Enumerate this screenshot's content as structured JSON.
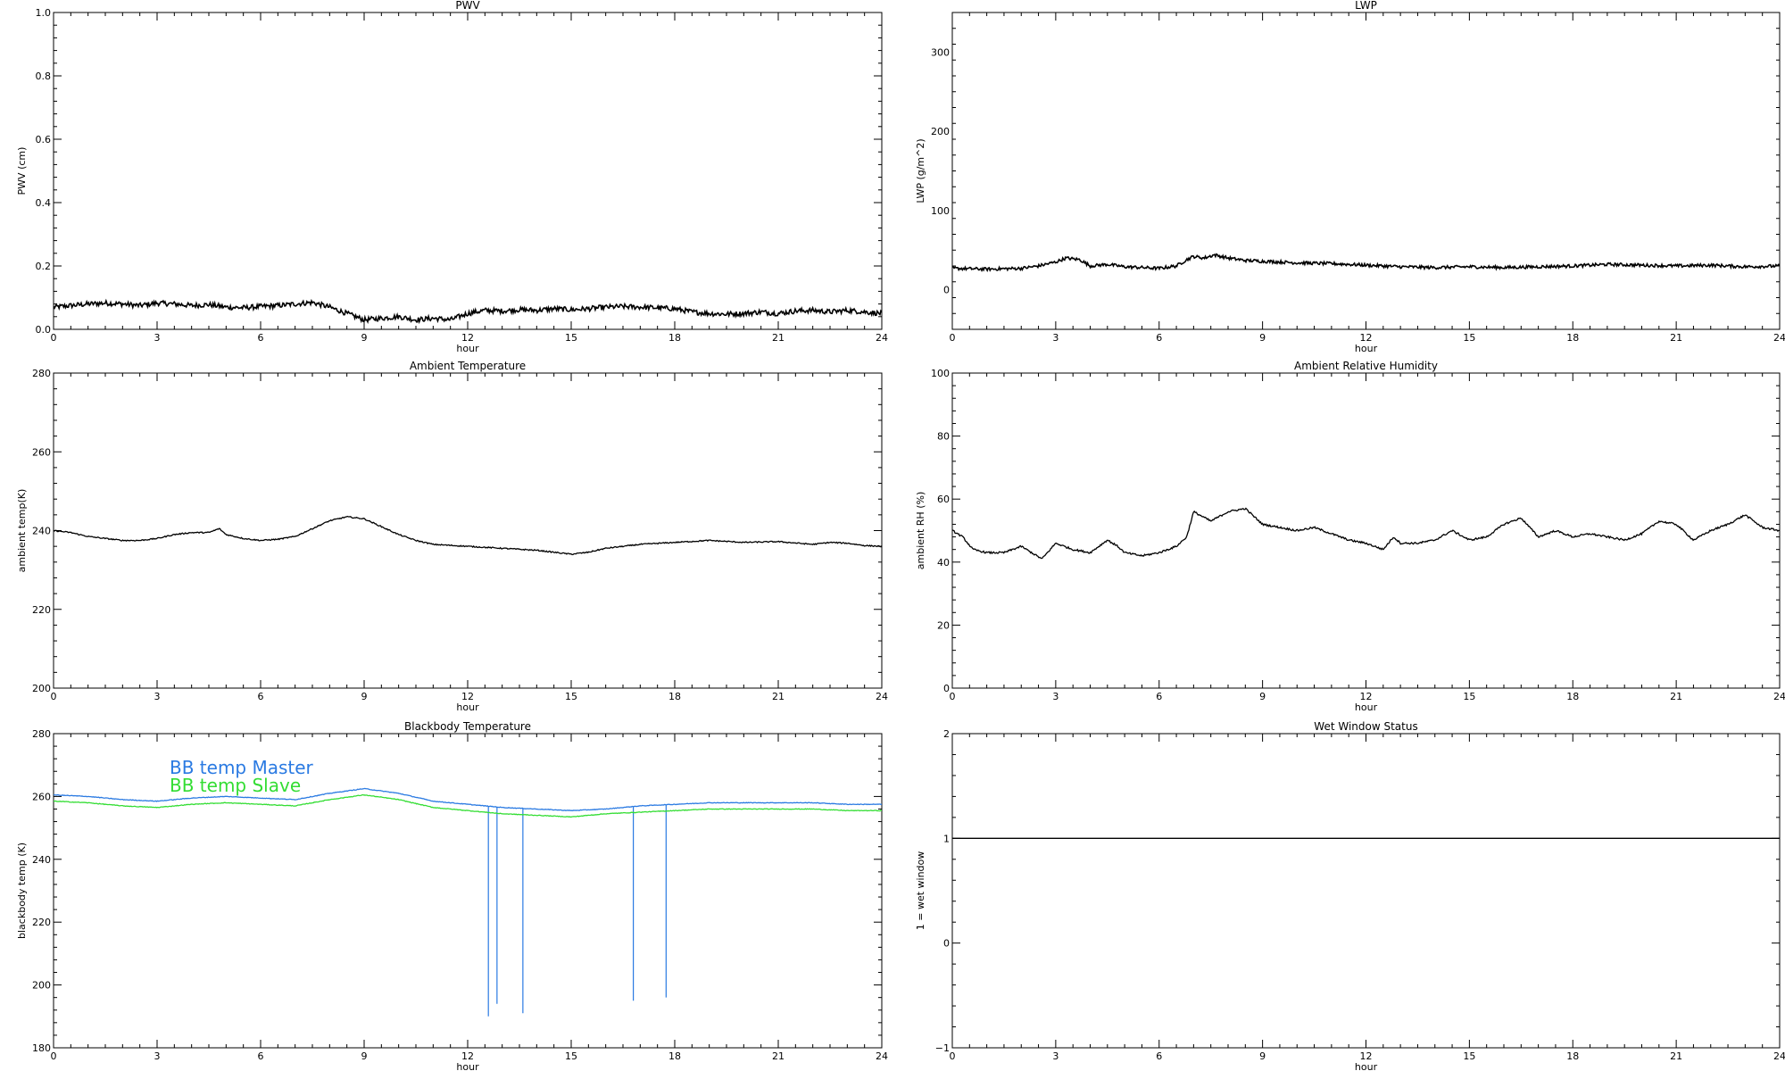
{
  "chart_data": [
    {
      "id": "pwv",
      "type": "line",
      "title": "PWV",
      "xlabel": "hour",
      "ylabel": "PWV (cm)",
      "xlim": [
        0,
        24
      ],
      "ylim": [
        0.0,
        1.0
      ],
      "xticks": [
        0,
        3,
        6,
        9,
        12,
        15,
        18,
        21,
        24
      ],
      "xtick_labels": [
        "0",
        "3",
        "6",
        "9",
        "12",
        "15",
        "18",
        "21",
        "24"
      ],
      "yticks": [
        0.0,
        0.2,
        0.4,
        0.6,
        0.8,
        1.0
      ],
      "ytick_labels": [
        "0.0",
        "0.2",
        "0.4",
        "0.6",
        "0.8",
        "1.0"
      ],
      "grid": false,
      "series": [
        {
          "color": "#000000",
          "noise": 0.008,
          "x": [
            0,
            0.5,
            1,
            1.5,
            2,
            2.5,
            3,
            3.5,
            4,
            4.5,
            5,
            5.5,
            6,
            6.5,
            7,
            7.5,
            8,
            8.5,
            9,
            9.5,
            10,
            10.5,
            11,
            11.5,
            12,
            12.5,
            13,
            13.5,
            14,
            14.5,
            15,
            15.5,
            16,
            16.5,
            17,
            17.5,
            18,
            18.5,
            19,
            19.5,
            20,
            20.5,
            21,
            21.5,
            22,
            22.5,
            23,
            23.5,
            24
          ],
          "y": [
            0.07,
            0.075,
            0.08,
            0.083,
            0.08,
            0.075,
            0.083,
            0.08,
            0.075,
            0.078,
            0.07,
            0.068,
            0.072,
            0.075,
            0.08,
            0.085,
            0.07,
            0.05,
            0.03,
            0.035,
            0.04,
            0.03,
            0.035,
            0.03,
            0.05,
            0.06,
            0.058,
            0.062,
            0.06,
            0.065,
            0.062,
            0.065,
            0.07,
            0.072,
            0.07,
            0.068,
            0.065,
            0.055,
            0.05,
            0.048,
            0.05,
            0.055,
            0.05,
            0.058,
            0.06,
            0.055,
            0.06,
            0.055,
            0.05
          ]
        }
      ]
    },
    {
      "id": "lwp",
      "type": "line",
      "title": "LWP",
      "xlabel": "hour",
      "ylabel": "LWP (g/m^2)",
      "xlim": [
        0,
        24
      ],
      "ylim": [
        -50,
        350
      ],
      "xticks": [
        0,
        3,
        6,
        9,
        12,
        15,
        18,
        21,
        24
      ],
      "xtick_labels": [
        "0",
        "3",
        "6",
        "9",
        "12",
        "15",
        "18",
        "21",
        "24"
      ],
      "yticks": [
        0,
        100,
        200,
        300
      ],
      "ytick_labels": [
        "0",
        "100",
        "200",
        "300"
      ],
      "grid": false,
      "series": [
        {
          "color": "#000000",
          "noise": 2.0,
          "x": [
            0,
            1,
            2,
            2.5,
            3,
            3.3,
            3.7,
            4,
            4.5,
            5,
            5.5,
            6,
            6.5,
            6.8,
            7,
            7.3,
            7.6,
            8,
            8.5,
            9,
            9.5,
            10,
            11,
            12,
            13,
            14,
            15,
            16,
            17,
            18,
            19,
            20,
            21,
            22,
            23,
            24
          ],
          "y": [
            27,
            26,
            27,
            30,
            35,
            40,
            38,
            30,
            32,
            29,
            28,
            27,
            30,
            38,
            42,
            40,
            44,
            40,
            37,
            36,
            35,
            34,
            33,
            31,
            29,
            28,
            29,
            28,
            29,
            30,
            32,
            31,
            30,
            31,
            29,
            30
          ]
        }
      ]
    },
    {
      "id": "ambient_temp",
      "type": "line",
      "title": "Ambient Temperature",
      "xlabel": "hour",
      "ylabel": "ambient temp(K)",
      "xlim": [
        0,
        24
      ],
      "ylim": [
        200,
        280
      ],
      "xticks": [
        0,
        3,
        6,
        9,
        12,
        15,
        18,
        21,
        24
      ],
      "xtick_labels": [
        "0",
        "3",
        "6",
        "9",
        "12",
        "15",
        "18",
        "21",
        "24"
      ],
      "yticks": [
        200,
        220,
        240,
        260,
        280
      ],
      "ytick_labels": [
        "200",
        "220",
        "240",
        "260",
        "280"
      ],
      "grid": false,
      "series": [
        {
          "color": "#000000",
          "noise": 0.15,
          "x": [
            0,
            0.5,
            1,
            1.5,
            2,
            2.5,
            3,
            3.5,
            4,
            4.5,
            4.8,
            5,
            5.5,
            6,
            6.5,
            7,
            7.5,
            8,
            8.5,
            9,
            9.5,
            10,
            10.5,
            11,
            12,
            13,
            14,
            15,
            15.5,
            16,
            17,
            18,
            19,
            20,
            21,
            22,
            22.5,
            23,
            23.5,
            24
          ],
          "y": [
            240,
            239.5,
            238.5,
            238,
            237.5,
            237.5,
            238,
            239,
            239.5,
            239.5,
            240.5,
            239,
            238,
            237.5,
            237.8,
            238.5,
            240.5,
            242.5,
            243.5,
            243,
            241,
            239,
            237.5,
            236.5,
            236,
            235.5,
            235,
            234,
            234.5,
            235.5,
            236.5,
            237,
            237.5,
            237,
            237.2,
            236.5,
            237,
            236.8,
            236.2,
            236
          ]
        }
      ]
    },
    {
      "id": "ambient_rh",
      "type": "line",
      "title": "Ambient Relative Humidity",
      "xlabel": "hour",
      "ylabel": "ambient RH (%)",
      "xlim": [
        0,
        24
      ],
      "ylim": [
        0,
        100
      ],
      "xticks": [
        0,
        3,
        6,
        9,
        12,
        15,
        18,
        21,
        24
      ],
      "xtick_labels": [
        "0",
        "3",
        "6",
        "9",
        "12",
        "15",
        "18",
        "21",
        "24"
      ],
      "yticks": [
        0,
        20,
        40,
        60,
        80,
        100
      ],
      "ytick_labels": [
        "0",
        "20",
        "40",
        "60",
        "80",
        "100"
      ],
      "grid": false,
      "series": [
        {
          "color": "#000000",
          "noise": 0.3,
          "x": [
            0,
            0.3,
            0.6,
            1,
            1.5,
            2,
            2.3,
            2.6,
            3,
            3.5,
            4,
            4.5,
            4.8,
            5,
            5.5,
            6,
            6.5,
            6.8,
            7,
            7.5,
            8,
            8.5,
            9,
            9.5,
            10,
            10.5,
            11,
            11.5,
            12,
            12.5,
            12.8,
            13,
            13.5,
            14,
            14.5,
            15,
            15.5,
            16,
            16.5,
            17,
            17.5,
            18,
            18.5,
            19,
            19.5,
            20,
            20.5,
            21,
            21.5,
            22,
            22.5,
            23,
            23.5,
            24
          ],
          "y": [
            50,
            48,
            44,
            43,
            43,
            45,
            43,
            41,
            46,
            44,
            43,
            47,
            45,
            43,
            42,
            43,
            45,
            48,
            56,
            53,
            56,
            57,
            52,
            51,
            50,
            51,
            49,
            47,
            46,
            44,
            48,
            46,
            46,
            47,
            50,
            47,
            48,
            52,
            54,
            48,
            50,
            48,
            49,
            48,
            47,
            49,
            53,
            52,
            47,
            50,
            52,
            55,
            51,
            50
          ]
        }
      ]
    },
    {
      "id": "blackbody_temp",
      "type": "line",
      "title": "Blackbody Temperature",
      "xlabel": "hour",
      "ylabel": "blackbody temp (K)",
      "xlim": [
        0,
        24
      ],
      "ylim": [
        180,
        280
      ],
      "xticks": [
        0,
        3,
        6,
        9,
        12,
        15,
        18,
        21,
        24
      ],
      "xtick_labels": [
        "0",
        "3",
        "6",
        "9",
        "12",
        "15",
        "18",
        "21",
        "24"
      ],
      "yticks": [
        180,
        200,
        220,
        240,
        260,
        280
      ],
      "ytick_labels": [
        "180",
        "200",
        "220",
        "240",
        "260",
        "280"
      ],
      "grid": false,
      "legend_placement": "top-left",
      "series": [
        {
          "name": "BB temp Master",
          "color": "#2a7ae2",
          "noise": 0.1,
          "x": [
            0,
            1,
            2,
            3,
            4,
            5,
            6,
            7,
            8,
            9,
            10,
            11,
            12,
            13,
            14,
            15,
            16,
            17,
            18,
            19,
            20,
            21,
            22,
            23,
            24
          ],
          "y": [
            260.5,
            260,
            259,
            258.5,
            259.5,
            260,
            259.5,
            259,
            261,
            262.5,
            261,
            258.5,
            257.5,
            256.5,
            256,
            255.5,
            256,
            257,
            257.5,
            258,
            258,
            258,
            258,
            257.5,
            257.5
          ],
          "spikes": [
            {
              "x": 12.6,
              "y": 190
            },
            {
              "x": 12.85,
              "y": 194
            },
            {
              "x": 13.6,
              "y": 191
            },
            {
              "x": 16.8,
              "y": 195
            },
            {
              "x": 17.75,
              "y": 196
            }
          ]
        },
        {
          "name": "BB temp Slave",
          "color": "#33dd33",
          "noise": 0.1,
          "x": [
            0,
            1,
            2,
            3,
            4,
            5,
            6,
            7,
            8,
            9,
            10,
            11,
            12,
            13,
            14,
            15,
            16,
            17,
            18,
            19,
            20,
            21,
            22,
            23,
            24
          ],
          "y": [
            258.5,
            258,
            257,
            256.5,
            257.5,
            258,
            257.5,
            257,
            259,
            260.5,
            259,
            256.5,
            255.5,
            254.5,
            254,
            253.5,
            254.5,
            255,
            255.5,
            256,
            256,
            256,
            256,
            255.5,
            255.5
          ]
        }
      ]
    },
    {
      "id": "wet_window",
      "type": "line",
      "title": "Wet Window Status",
      "xlabel": "hour",
      "ylabel": "1 = wet window",
      "xlim": [
        0,
        24
      ],
      "ylim": [
        -1,
        2
      ],
      "xticks": [
        0,
        3,
        6,
        9,
        12,
        15,
        18,
        21,
        24
      ],
      "xtick_labels": [
        "0",
        "3",
        "6",
        "9",
        "12",
        "15",
        "18",
        "21",
        "24"
      ],
      "yticks": [
        -1,
        0,
        1,
        2
      ],
      "ytick_labels": [
        "−1",
        "0",
        "1",
        "2"
      ],
      "grid": false,
      "series": [
        {
          "color": "#000000",
          "noise": 0,
          "x": [
            0,
            24
          ],
          "y": [
            1,
            1
          ]
        }
      ]
    }
  ]
}
